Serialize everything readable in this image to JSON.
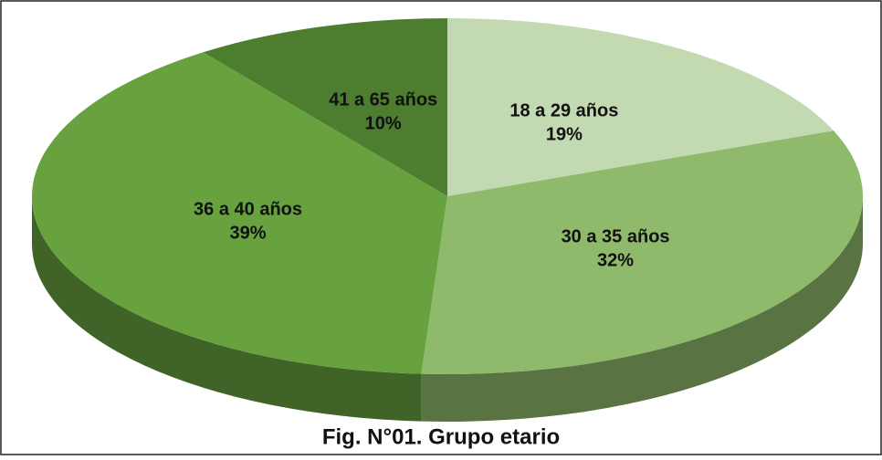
{
  "chart_data": {
    "type": "pie",
    "title": "Fig. N°01. Grupo etario",
    "categories": [
      "18 a 29 años",
      "30 a 35 años",
      "36 a 40 años",
      "41 a 65 años"
    ],
    "values": [
      19,
      32,
      39,
      10
    ],
    "value_labels": [
      "19%",
      "32%",
      "39%",
      "10%"
    ],
    "colors": [
      "#c3d9b2",
      "#8fba6c",
      "#67a23f",
      "#4d7d2f"
    ],
    "three_d": true
  }
}
